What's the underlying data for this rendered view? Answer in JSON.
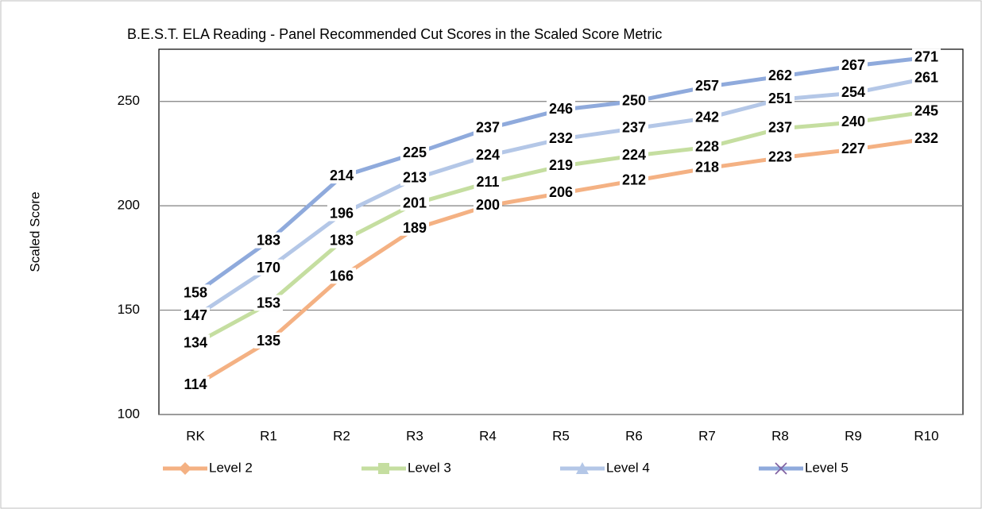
{
  "chart_data": {
    "type": "line",
    "title": "B.E.S.T. ELA Reading - Panel Recommended Cut Scores in the Scaled Score Metric",
    "y_label": "Scaled Score",
    "categories": [
      "RK",
      "R1",
      "R2",
      "R3",
      "R4",
      "R5",
      "R6",
      "R7",
      "R8",
      "R9",
      "R10"
    ],
    "series": [
      {
        "name": "Level 2",
        "color": "#f4b183",
        "marker": "diamond",
        "values": [
          114,
          135,
          166,
          189,
          200,
          206,
          212,
          218,
          223,
          227,
          232
        ]
      },
      {
        "name": "Level 3",
        "color": "#c5dea0",
        "marker": "square",
        "values": [
          134,
          153,
          183,
          201,
          211,
          219,
          224,
          228,
          237,
          240,
          245
        ]
      },
      {
        "name": "Level 4",
        "color": "#b4c7e7",
        "marker": "triangle",
        "values": [
          147,
          170,
          196,
          213,
          224,
          232,
          237,
          242,
          251,
          254,
          261
        ]
      },
      {
        "name": "Level 5",
        "color": "#8faadc",
        "marker": "x",
        "values": [
          158,
          183,
          214,
          225,
          237,
          246,
          250,
          257,
          262,
          267,
          271
        ]
      }
    ],
    "ylim": [
      100,
      275
    ],
    "yticks": [
      100,
      150,
      200,
      250
    ],
    "grid": true,
    "legend": "bottom"
  }
}
